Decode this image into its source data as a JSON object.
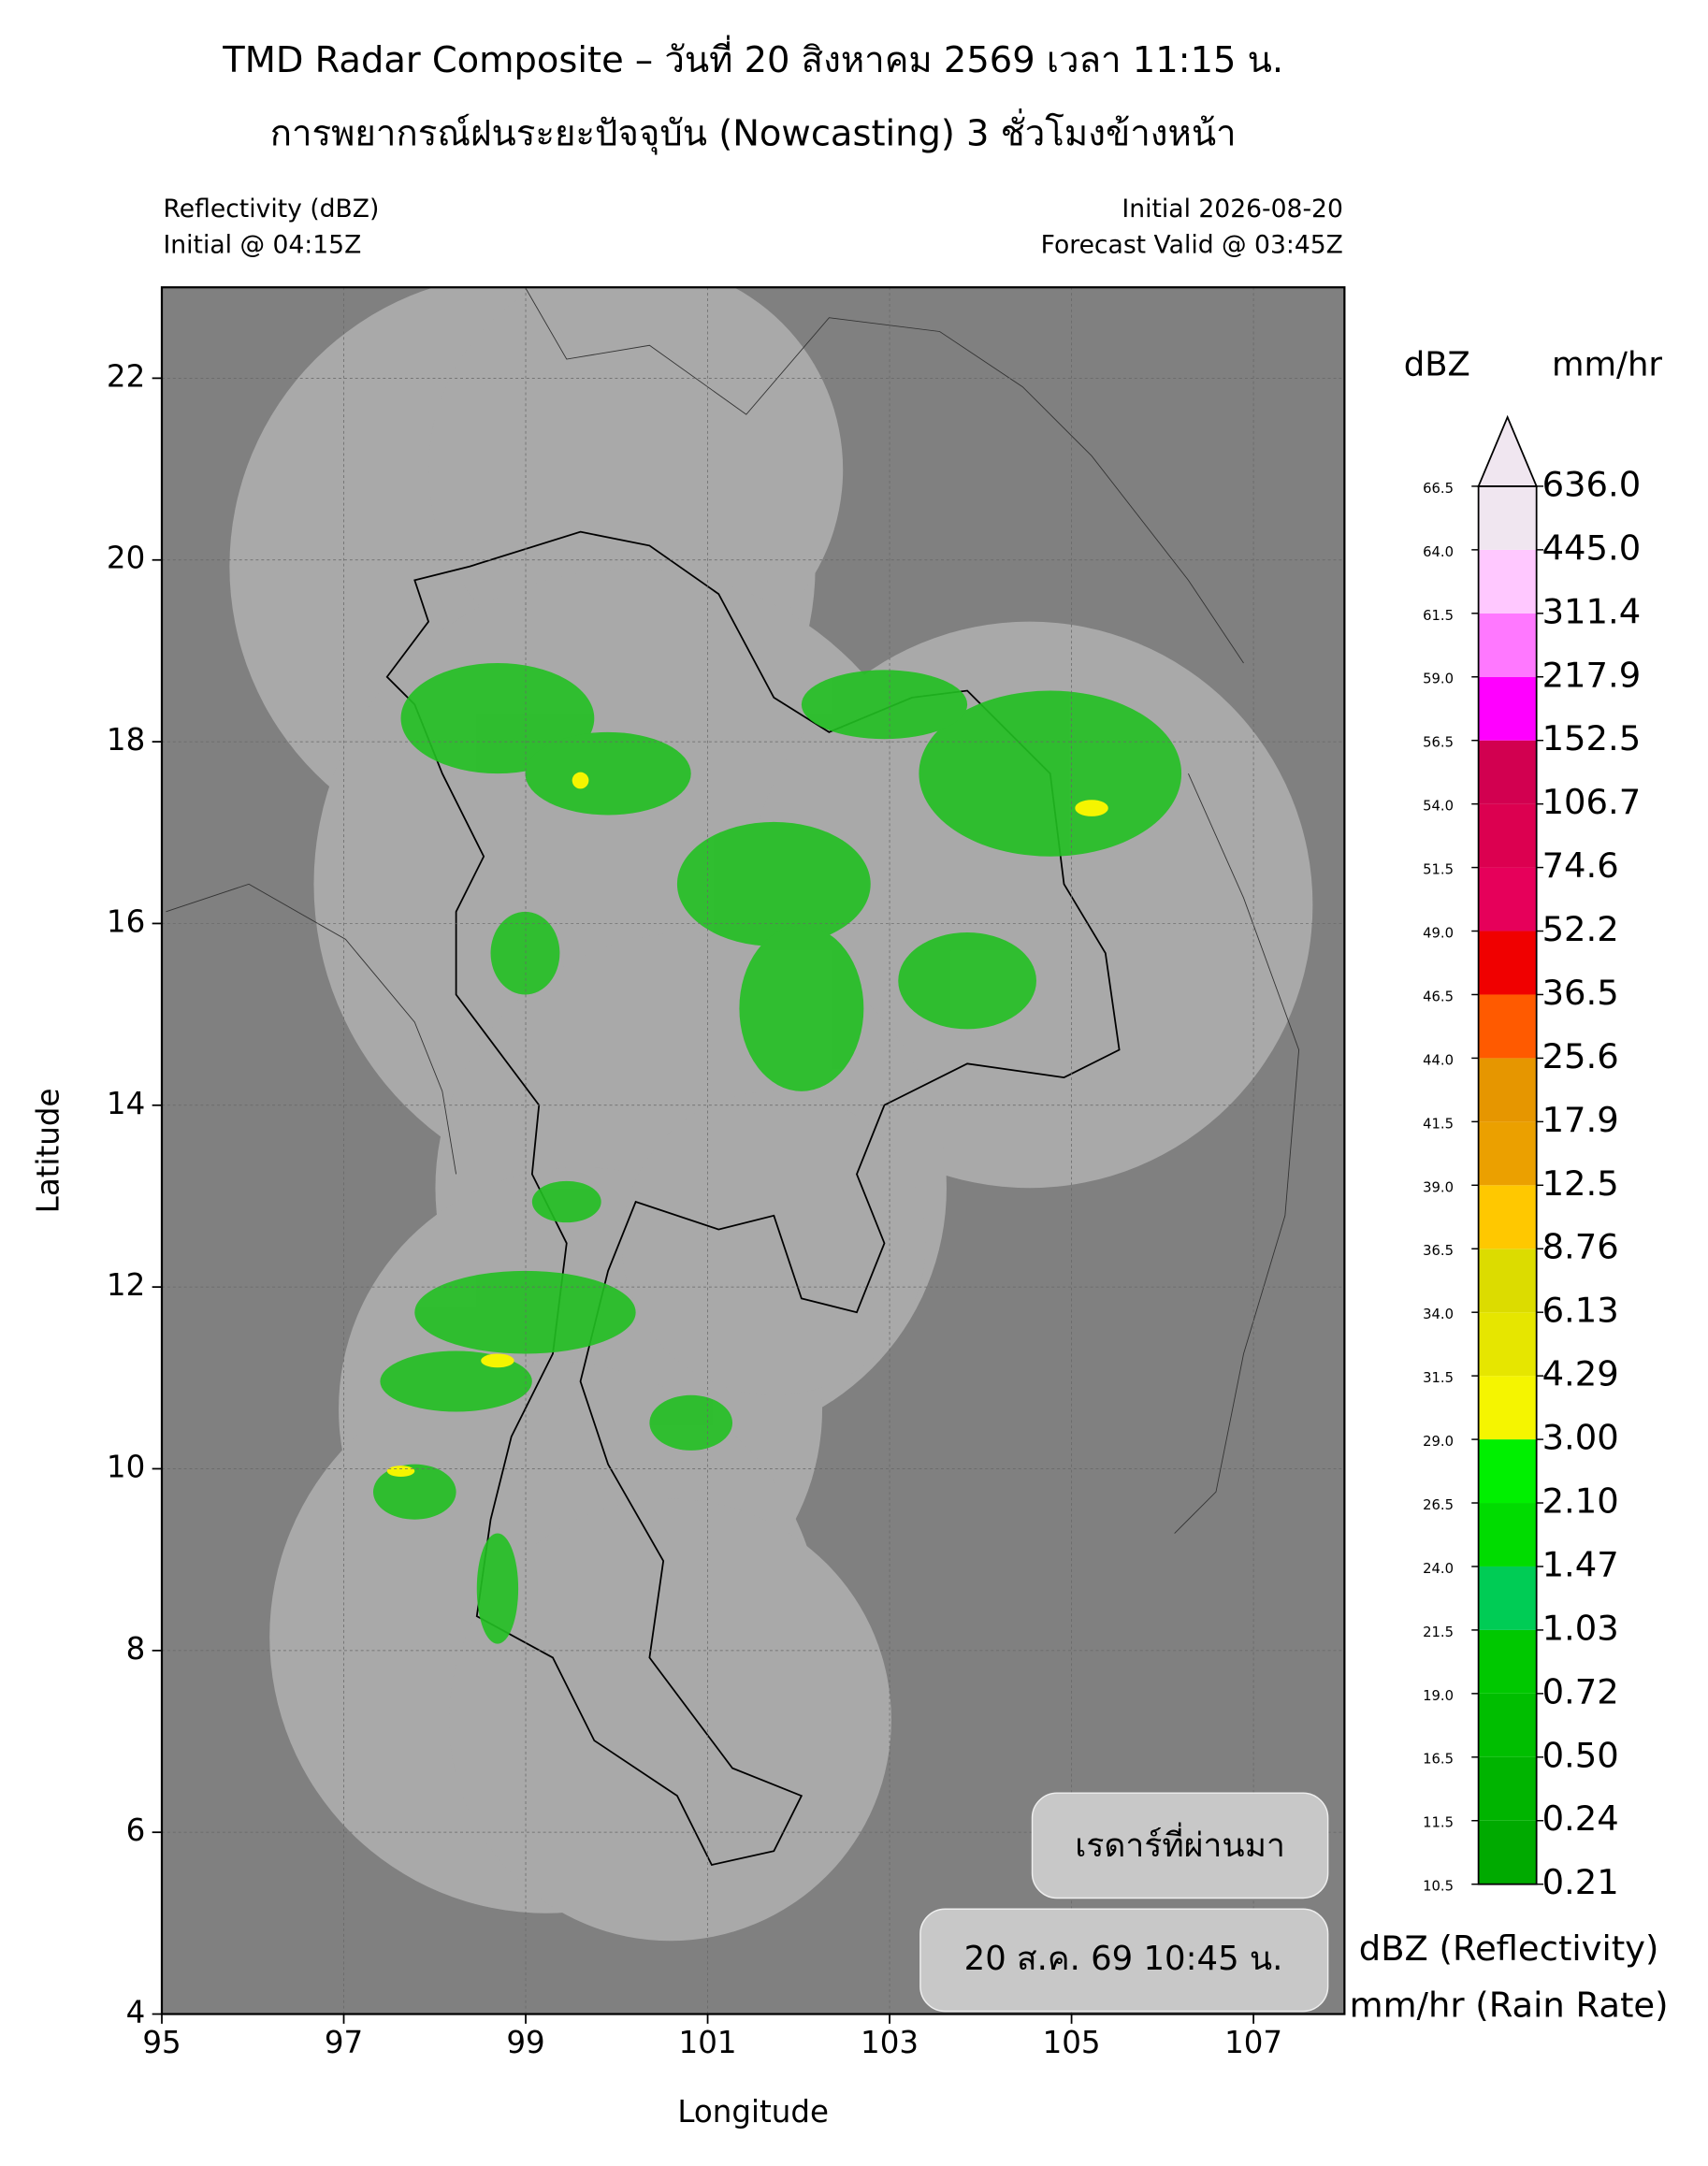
{
  "chart_data": {
    "type": "map",
    "title": "TMD Radar Composite – วันที่ 20 สิงหาคม 2569 เวลา 11:15 น.",
    "subtitle": "การพยากรณ์ฝนระยะปัจจุบัน (Nowcasting) 3 ชั่วโมงข้างหน้า",
    "header_left": [
      "Reflectivity (dBZ)",
      "Initial @ 04:15Z"
    ],
    "header_right": [
      "Initial 2026-08-20",
      "Forecast Valid @ 03:45Z"
    ],
    "xlabel": "Longitude",
    "ylabel": "Latitude",
    "xlim": [
      95,
      108
    ],
    "ylim": [
      4,
      23
    ],
    "xticks": [
      95,
      97,
      99,
      101,
      103,
      105,
      107
    ],
    "yticks": [
      4,
      6,
      8,
      10,
      12,
      14,
      16,
      18,
      20,
      22
    ],
    "grid": true,
    "colorbar": {
      "title_left": "dBZ",
      "title_right": "mm/hr",
      "dbz": [
        10.5,
        11.5,
        16.5,
        {
          "value": 19,
          "label": "19.0"
        },
        21.5,
        {
          "value": 24,
          "label": "24.0"
        },
        26.5,
        {
          "value": 29,
          "label": "29.0"
        },
        31.5,
        {
          "value": 34,
          "label": "34.0"
        },
        36.5,
        {
          "value": 39,
          "label": "39.0"
        },
        41.5,
        {
          "value": 44,
          "label": "44.0"
        },
        46.5,
        {
          "value": 49,
          "label": "49.0"
        },
        51.5,
        {
          "value": 54,
          "label": "54.0"
        },
        56.5,
        {
          "value": 59,
          "label": "59.0"
        },
        61.5,
        {
          "value": 64,
          "label": "64.0"
        },
        66.5
      ],
      "rain_rate": [
        0.21,
        0.24,
        {
          "value": 0.5,
          "label": "0.50"
        },
        0.72,
        1.03,
        1.47,
        {
          "value": 2.1,
          "label": "2.10"
        },
        {
          "value": 3,
          "label": "3.00"
        },
        4.29,
        6.13,
        8.76,
        12.5,
        17.9,
        25.6,
        36.5,
        52.2,
        74.6,
        106.7,
        152.5,
        217.9,
        311.4,
        {
          "value": 445,
          "label": "445.0"
        },
        {
          "value": 636,
          "label": "636.0"
        }
      ],
      "colors": [
        "#00aa00",
        "#00b400",
        "#00be00",
        "#00c800",
        "#00cc55",
        "#00dc00",
        "#00f000",
        "#f5f500",
        "#e6e600",
        "#dcdc00",
        "#ffc800",
        "#eba000",
        "#e69600",
        "#ff5a00",
        "#f00000",
        "#e6005a",
        "#dc0050",
        "#d20050",
        "#ff00ff",
        "#ff78ff",
        "#ffc8ff",
        "#f0e6f0"
      ],
      "caption": [
        "dBZ (Reflectivity)",
        "mm/hr (Rain Rate)"
      ]
    },
    "controls": [
      "เรดาร์ที่ผ่านมา",
      "20 ส.ค. 69 10:45 น."
    ]
  }
}
